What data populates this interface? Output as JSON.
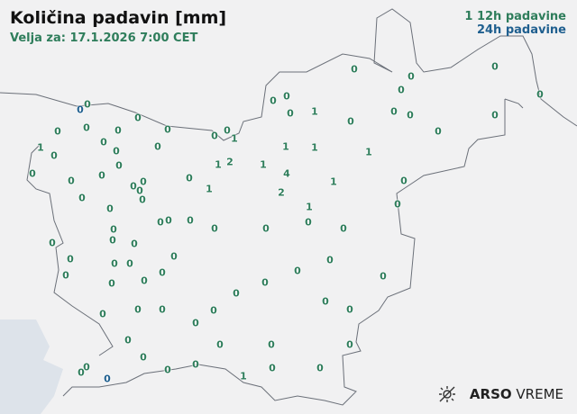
{
  "header": {
    "title": "Količina padavin [mm]",
    "valid": "Velja za: 17.1.2026 7:00 CET"
  },
  "legend": {
    "sample": "1",
    "label_12h": "12h padavine",
    "label_24h": "24h padavine"
  },
  "colors": {
    "12h": "#2e7d5b",
    "24h": "#1f5f8f",
    "background": "#f1f1f2",
    "sea": "#dde3ea",
    "border": "#6b7079"
  },
  "stations": [
    {
      "v": "0",
      "type": "24h"
    },
    {
      "v": "0",
      "type": "12h"
    },
    {
      "v": "0",
      "type": "12h"
    },
    {
      "v": "0",
      "type": "12h"
    },
    {
      "v": "0",
      "type": "12h"
    },
    {
      "v": "0",
      "type": "12h"
    },
    {
      "v": "0",
      "type": "12h"
    },
    {
      "v": "1",
      "type": "12h"
    },
    {
      "v": "0",
      "type": "12h"
    },
    {
      "v": "0",
      "type": "12h"
    },
    {
      "v": "0",
      "type": "12h"
    },
    {
      "v": "0",
      "type": "12h"
    },
    {
      "v": "0",
      "type": "12h"
    },
    {
      "v": "0",
      "type": "12h"
    },
    {
      "v": "0",
      "type": "12h"
    },
    {
      "v": "1",
      "type": "12h"
    },
    {
      "v": "0",
      "type": "12h"
    },
    {
      "v": "0",
      "type": "12h"
    },
    {
      "v": "0",
      "type": "12h"
    },
    {
      "v": "0",
      "type": "12h"
    },
    {
      "v": "0",
      "type": "12h"
    },
    {
      "v": "0",
      "type": "12h"
    },
    {
      "v": "0",
      "type": "12h"
    },
    {
      "v": "0",
      "type": "12h"
    },
    {
      "v": "1",
      "type": "12h"
    },
    {
      "v": "2",
      "type": "12h"
    },
    {
      "v": "1",
      "type": "12h"
    },
    {
      "v": "1",
      "type": "12h"
    },
    {
      "v": "1",
      "type": "12h"
    },
    {
      "v": "1",
      "type": "12h"
    },
    {
      "v": "4",
      "type": "12h"
    },
    {
      "v": "2",
      "type": "12h"
    },
    {
      "v": "1",
      "type": "12h"
    },
    {
      "v": "1",
      "type": "12h"
    },
    {
      "v": "0",
      "type": "12h"
    },
    {
      "v": "0",
      "type": "12h"
    },
    {
      "v": "0",
      "type": "12h"
    },
    {
      "v": "1",
      "type": "12h"
    },
    {
      "v": "0",
      "type": "12h"
    },
    {
      "v": "0",
      "type": "12h"
    },
    {
      "v": "0",
      "type": "12h"
    },
    {
      "v": "0",
      "type": "12h"
    },
    {
      "v": "0",
      "type": "12h"
    },
    {
      "v": "0",
      "type": "12h"
    },
    {
      "v": "0",
      "type": "12h"
    },
    {
      "v": "0",
      "type": "12h"
    },
    {
      "v": "0",
      "type": "12h"
    },
    {
      "v": "0",
      "type": "12h"
    },
    {
      "v": "0",
      "type": "12h"
    },
    {
      "v": "0",
      "type": "12h"
    },
    {
      "v": "1",
      "type": "12h"
    },
    {
      "v": "0",
      "type": "12h"
    },
    {
      "v": "0",
      "type": "12h"
    },
    {
      "v": "0",
      "type": "12h"
    },
    {
      "v": "0",
      "type": "12h"
    },
    {
      "v": "0",
      "type": "12h"
    },
    {
      "v": "0",
      "type": "12h"
    },
    {
      "v": "0",
      "type": "12h"
    },
    {
      "v": "0",
      "type": "12h"
    },
    {
      "v": "0",
      "type": "12h"
    },
    {
      "v": "0",
      "type": "12h"
    },
    {
      "v": "0",
      "type": "12h"
    },
    {
      "v": "0",
      "type": "12h"
    },
    {
      "v": "0",
      "type": "12h"
    },
    {
      "v": "0",
      "type": "12h"
    },
    {
      "v": "0",
      "type": "12h"
    },
    {
      "v": "0",
      "type": "12h"
    },
    {
      "v": "0",
      "type": "12h"
    },
    {
      "v": "0",
      "type": "12h"
    },
    {
      "v": "0",
      "type": "12h"
    },
    {
      "v": "0",
      "type": "12h"
    },
    {
      "v": "0",
      "type": "12h"
    },
    {
      "v": "0",
      "type": "12h"
    },
    {
      "v": "0",
      "type": "12h"
    },
    {
      "v": "0",
      "type": "12h"
    },
    {
      "v": "0",
      "type": "12h"
    },
    {
      "v": "0",
      "type": "12h"
    },
    {
      "v": "0",
      "type": "12h"
    },
    {
      "v": "0",
      "type": "12h"
    },
    {
      "v": "0",
      "type": "12h"
    },
    {
      "v": "0",
      "type": "12h"
    },
    {
      "v": "0",
      "type": "12h"
    },
    {
      "v": "0",
      "type": "12h"
    },
    {
      "v": "0",
      "type": "12h"
    },
    {
      "v": "0",
      "type": "12h"
    },
    {
      "v": "0",
      "type": "12h"
    },
    {
      "v": "0",
      "type": "12h"
    },
    {
      "v": "0",
      "type": "12h"
    },
    {
      "v": "0",
      "type": "12h"
    },
    {
      "v": "0",
      "type": "12h"
    },
    {
      "v": "0",
      "type": "12h"
    },
    {
      "v": "1",
      "type": "12h"
    },
    {
      "v": "0",
      "type": "12h"
    },
    {
      "v": "0",
      "type": "12h"
    },
    {
      "v": "0",
      "type": "12h"
    },
    {
      "v": "0",
      "type": "12h"
    },
    {
      "v": "0",
      "type": "24h"
    }
  ],
  "logo": {
    "brand": "ARSO",
    "product": "VREME",
    "icon": "sun-cloud-icon"
  }
}
